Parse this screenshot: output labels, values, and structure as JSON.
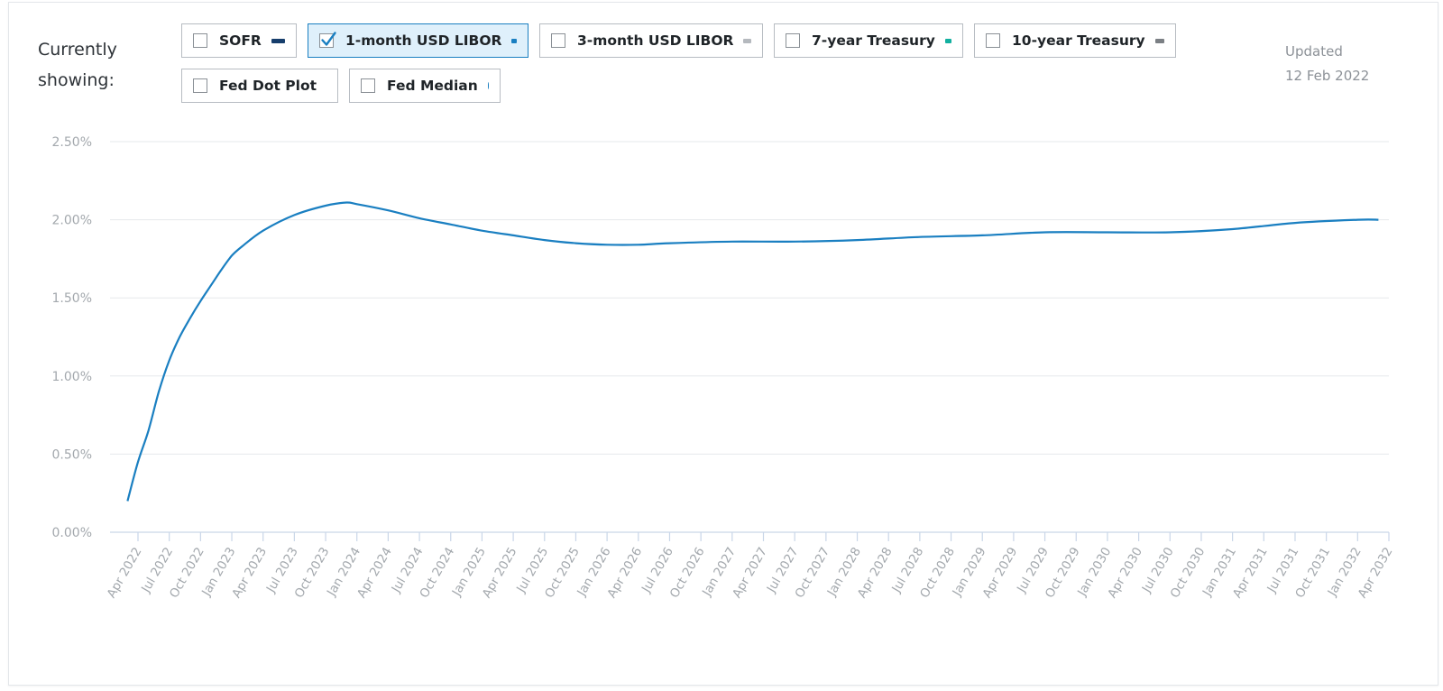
{
  "header": {
    "currently_label_line1": "Currently",
    "currently_label_line2": "showing:",
    "updated_label": "Updated",
    "updated_date": "12 Feb 2022"
  },
  "legend": [
    {
      "label": "SOFR",
      "checked": false,
      "color": "#173e6c",
      "marker": "line"
    },
    {
      "label": "1-month USD LIBOR",
      "checked": true,
      "color": "#1a7fc1",
      "marker": "line"
    },
    {
      "label": "3-month USD LIBOR",
      "checked": false,
      "color": "#b5b9be",
      "marker": "line"
    },
    {
      "label": "7-year Treasury",
      "checked": false,
      "color": "#13b0a0",
      "marker": "line"
    },
    {
      "label": "10-year Treasury",
      "checked": false,
      "color": "#7b7f84",
      "marker": "line"
    },
    {
      "label": "Fed Dot Plot",
      "checked": false,
      "color": "#6f7378",
      "marker": "dot"
    },
    {
      "label": "Fed Median",
      "checked": false,
      "color": "#1a7fc1",
      "marker": "dot"
    }
  ],
  "chart_data": {
    "type": "line",
    "title": "",
    "xlabel": "",
    "ylabel": "",
    "ylim": [
      0,
      2.5
    ],
    "y_ticks": [
      "0.00%",
      "0.50%",
      "1.00%",
      "1.50%",
      "2.00%",
      "2.50%"
    ],
    "x_ticks": [
      "Apr 2022",
      "Jul 2022",
      "Oct 2022",
      "Jan 2023",
      "Apr 2023",
      "Jul 2023",
      "Oct 2023",
      "Jan 2024",
      "Apr 2024",
      "Jul 2024",
      "Oct 2024",
      "Jan 2025",
      "Apr 2025",
      "Jul 2025",
      "Oct 2025",
      "Jan 2026",
      "Apr 2026",
      "Jul 2026",
      "Oct 2026",
      "Jan 2027",
      "Apr 2027",
      "Jul 2027",
      "Oct 2027",
      "Jan 2028",
      "Apr 2028",
      "Jul 2028",
      "Oct 2028",
      "Jan 2029",
      "Apr 2029",
      "Jul 2029",
      "Oct 2029",
      "Jan 2030",
      "Apr 2030",
      "Jul 2030",
      "Oct 2030",
      "Jan 2031",
      "Apr 2031",
      "Jul 2031",
      "Oct 2031",
      "Jan 2032",
      "Apr 2032"
    ],
    "grid": true,
    "series": [
      {
        "name": "1-month USD LIBOR",
        "color": "#1a7fc1",
        "x": [
          "2022-03",
          "2022-04",
          "2022-05",
          "2022-06",
          "2022-07",
          "2022-08",
          "2022-09",
          "2022-10",
          "2022-11",
          "2022-12",
          "2023-01",
          "2023-02",
          "2023-04",
          "2023-07",
          "2023-10",
          "2023-12",
          "2024-01",
          "2024-04",
          "2024-07",
          "2024-10",
          "2025-01",
          "2025-04",
          "2025-07",
          "2025-10",
          "2026-01",
          "2026-04",
          "2026-07",
          "2027-01",
          "2027-07",
          "2028-01",
          "2028-07",
          "2029-01",
          "2029-07",
          "2030-01",
          "2030-07",
          "2031-01",
          "2031-07",
          "2032-01",
          "2032-03"
        ],
        "y": [
          0.2,
          0.45,
          0.65,
          0.9,
          1.1,
          1.25,
          1.37,
          1.48,
          1.58,
          1.68,
          1.77,
          1.83,
          1.93,
          2.03,
          2.09,
          2.11,
          2.1,
          2.06,
          2.01,
          1.97,
          1.93,
          1.9,
          1.87,
          1.85,
          1.84,
          1.84,
          1.85,
          1.86,
          1.86,
          1.87,
          1.89,
          1.9,
          1.92,
          1.92,
          1.92,
          1.94,
          1.98,
          2.0,
          2.0
        ]
      }
    ]
  }
}
